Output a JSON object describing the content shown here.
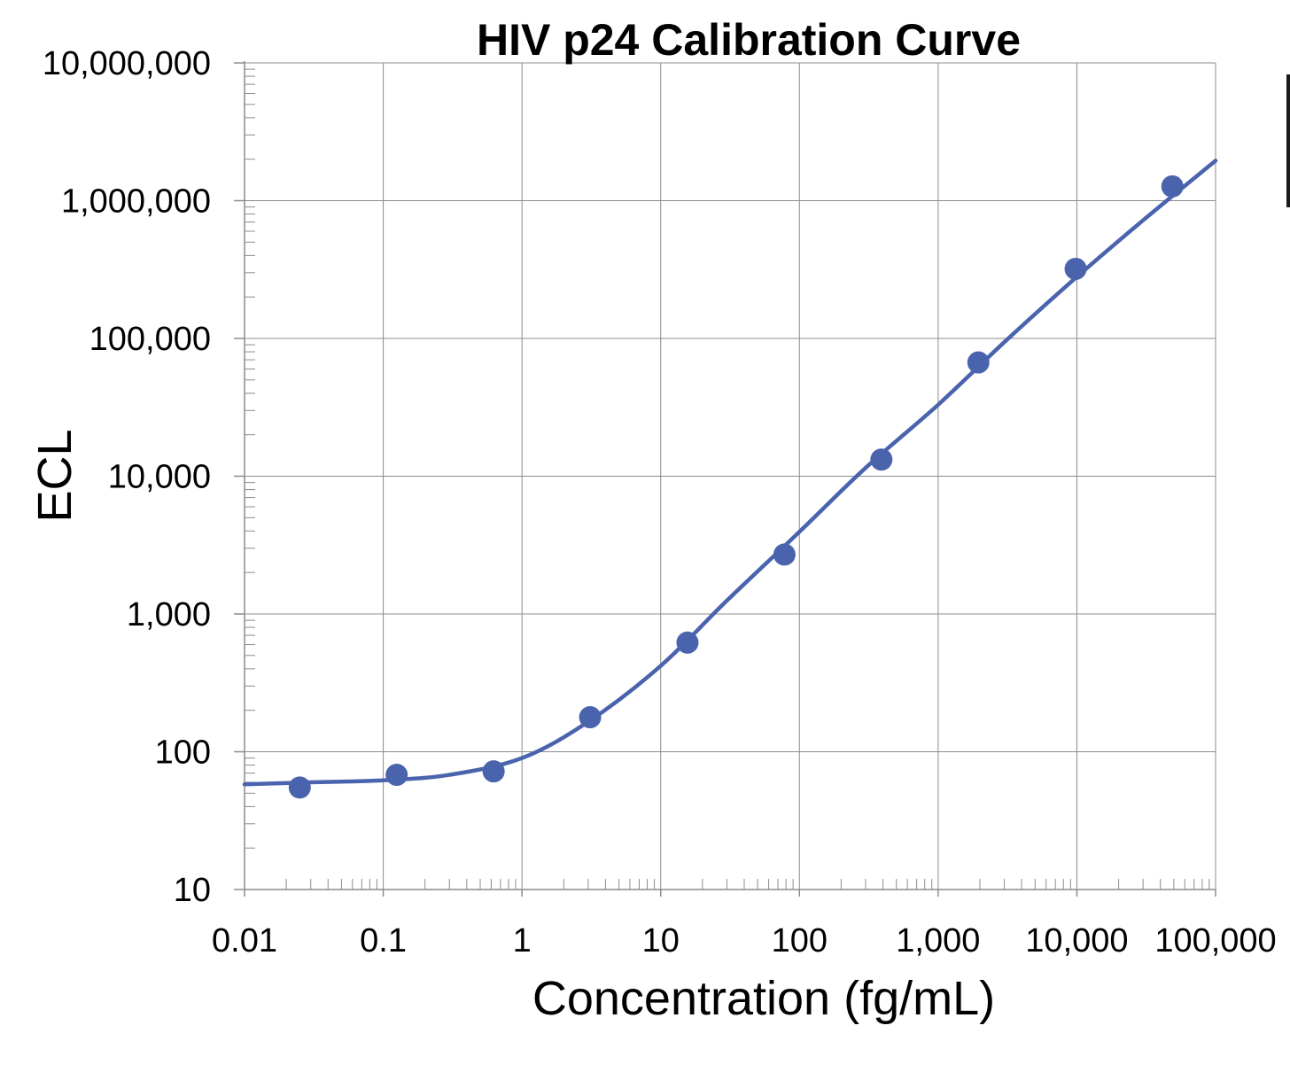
{
  "chart_data": {
    "type": "scatter",
    "title": "HIV p24 Calibration Curve",
    "xlabel": "Concentration (fg/mL)",
    "ylabel": "ECL",
    "x_scale": "log",
    "y_scale": "log",
    "xlim": [
      0.01,
      100000
    ],
    "ylim": [
      10,
      10000000
    ],
    "x_ticks": [
      0.01,
      0.1,
      1,
      10,
      100,
      1000,
      10000,
      100000
    ],
    "x_tick_labels": [
      "0.01",
      "0.1",
      "1",
      "10",
      "100",
      "1,000",
      "10,000",
      "100,000"
    ],
    "y_ticks": [
      10,
      100,
      1000,
      10000,
      100000,
      1000000,
      10000000
    ],
    "y_tick_labels": [
      "10",
      "100",
      "1,000",
      "10,000",
      "100,000",
      "1,000,000",
      "10,000,000"
    ],
    "grid": true,
    "marker_color": "#4a63ad",
    "line_color": "#4a63ad",
    "series": [
      {
        "type": "scatter",
        "x": [
          0.025,
          0.125,
          0.625,
          3.1,
          15.6,
          78,
          390,
          1950,
          9800,
          48800
        ],
        "y": [
          55,
          68,
          72,
          178,
          620,
          2700,
          13200,
          67000,
          320000,
          1270000
        ]
      },
      {
        "type": "line",
        "x": [
          0.01,
          0.03,
          0.1,
          0.3,
          1,
          3,
          10,
          30,
          100,
          300,
          1000,
          3000,
          10000,
          30000,
          100000
        ],
        "y": [
          58,
          60,
          62,
          68,
          90,
          165,
          420,
          1250,
          3950,
          11500,
          33000,
          94000,
          280000,
          720000,
          1950000
        ]
      }
    ]
  }
}
